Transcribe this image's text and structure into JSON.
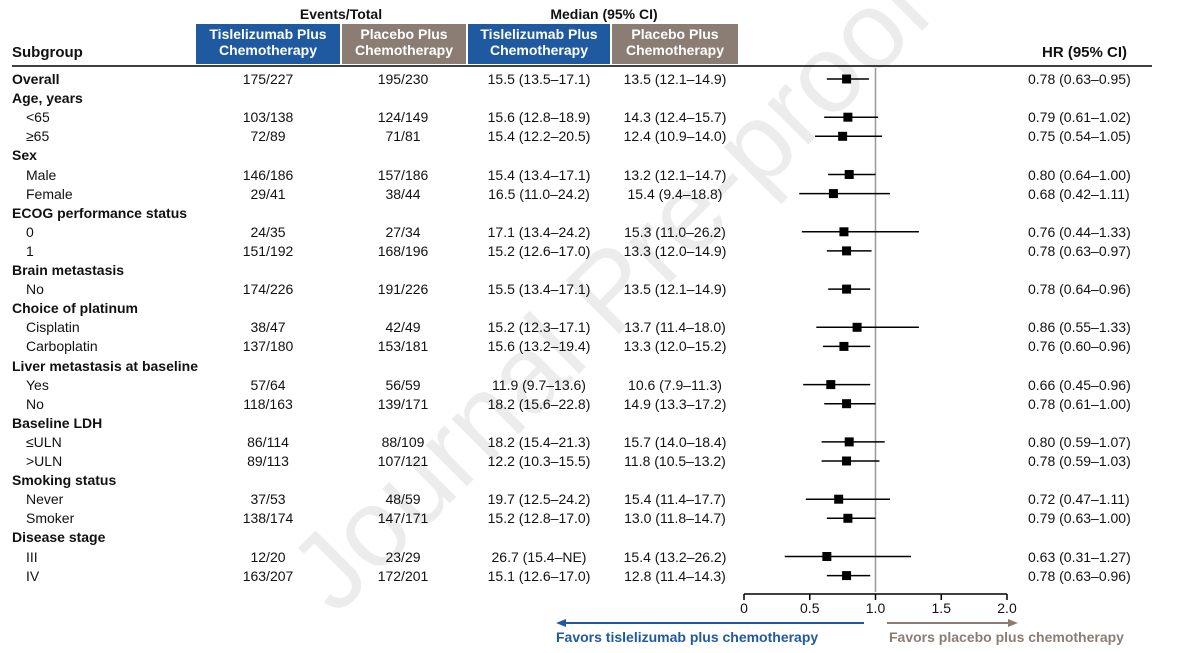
{
  "header": {
    "events_title": "Events/Total",
    "median_title": "Median (95% CI)",
    "subgroup_label": "Subgroup",
    "hr_label": "HR (95% CI)",
    "col_tisle_line1": "Tislelizumab Plus",
    "col_tisle_line2": "Chemotherapy",
    "col_placebo_line1": "Placebo Plus",
    "col_placebo_line2": "Chemotherapy"
  },
  "watermark": "Journal Pre-proof",
  "footer": {
    "favors_tisle": "Favors tislelizumab plus chemotherapy",
    "favors_placebo": "Favors placebo plus chemotherapy"
  },
  "colors": {
    "tisle": "#1f5aa0",
    "placebo": "#8c7d74",
    "reference_line": "#999999"
  },
  "chart_data": {
    "type": "forest",
    "xlim": [
      0,
      2.0
    ],
    "reference": 1.0,
    "xticks": [
      "0",
      "0.5",
      "1.0",
      "1.5",
      "2.0"
    ],
    "rows": [
      {
        "label": "Overall",
        "bold": true,
        "ev_t": "175/227",
        "ev_p": "195/230",
        "med_t": "15.5 (13.5–17.1)",
        "med_p": "13.5 (12.1–14.9)",
        "hr_text": "0.78 (0.63–0.95)",
        "hr": 0.78,
        "lo": 0.63,
        "hi": 0.95
      },
      {
        "label": "Age, years",
        "header": true
      },
      {
        "label": "<65",
        "ev_t": "103/138",
        "ev_p": "124/149",
        "med_t": "15.6 (12.8–18.9)",
        "med_p": "14.3 (12.4–15.7)",
        "hr_text": "0.79 (0.61–1.02)",
        "hr": 0.79,
        "lo": 0.61,
        "hi": 1.02
      },
      {
        "label": "≥65",
        "ev_t": "72/89",
        "ev_p": "71/81",
        "med_t": "15.4 (12.2–20.5)",
        "med_p": "12.4 (10.9–14.0)",
        "hr_text": "0.75 (0.54–1.05)",
        "hr": 0.75,
        "lo": 0.54,
        "hi": 1.05
      },
      {
        "label": "Sex",
        "header": true
      },
      {
        "label": "Male",
        "ev_t": "146/186",
        "ev_p": "157/186",
        "med_t": "15.4 (13.4–17.1)",
        "med_p": "13.2 (12.1–14.7)",
        "hr_text": "0.80 (0.64–1.00)",
        "hr": 0.8,
        "lo": 0.64,
        "hi": 1.0
      },
      {
        "label": "Female",
        "ev_t": "29/41",
        "ev_p": "38/44",
        "med_t": "16.5 (11.0–24.2)",
        "med_p": "15.4 (9.4–18.8)",
        "hr_text": "0.68 (0.42–1.11)",
        "hr": 0.68,
        "lo": 0.42,
        "hi": 1.11
      },
      {
        "label": "ECOG performance status",
        "header": true
      },
      {
        "label": "0",
        "ev_t": "24/35",
        "ev_p": "27/34",
        "med_t": "17.1 (13.4–24.2)",
        "med_p": "15.3 (11.0–26.2)",
        "hr_text": "0.76 (0.44–1.33)",
        "hr": 0.76,
        "lo": 0.44,
        "hi": 1.33
      },
      {
        "label": "1",
        "ev_t": "151/192",
        "ev_p": "168/196",
        "med_t": "15.2 (12.6–17.0)",
        "med_p": "13.3 (12.0–14.9)",
        "hr_text": "0.78 (0.63–0.97)",
        "hr": 0.78,
        "lo": 0.63,
        "hi": 0.97
      },
      {
        "label": "Brain metastasis",
        "header": true
      },
      {
        "label": "No",
        "ev_t": "174/226",
        "ev_p": "191/226",
        "med_t": "15.5 (13.4–17.1)",
        "med_p": "13.5 (12.1–14.9)",
        "hr_text": "0.78 (0.64–0.96)",
        "hr": 0.78,
        "lo": 0.64,
        "hi": 0.96
      },
      {
        "label": "Choice of platinum",
        "header": true
      },
      {
        "label": "Cisplatin",
        "ev_t": "38/47",
        "ev_p": "42/49",
        "med_t": "15.2 (12.3–17.1)",
        "med_p": "13.7 (11.4–18.0)",
        "hr_text": "0.86 (0.55–1.33)",
        "hr": 0.86,
        "lo": 0.55,
        "hi": 1.33
      },
      {
        "label": "Carboplatin",
        "ev_t": "137/180",
        "ev_p": "153/181",
        "med_t": "15.6 (13.2–19.4)",
        "med_p": "13.3 (12.0–15.2)",
        "hr_text": "0.76 (0.60–0.96)",
        "hr": 0.76,
        "lo": 0.6,
        "hi": 0.96
      },
      {
        "label": "Liver metastasis at baseline",
        "header": true
      },
      {
        "label": "Yes",
        "ev_t": "57/64",
        "ev_p": "56/59",
        "med_t": "11.9 (9.7–13.6)",
        "med_p": "10.6 (7.9–11.3)",
        "hr_text": "0.66 (0.45–0.96)",
        "hr": 0.66,
        "lo": 0.45,
        "hi": 0.96
      },
      {
        "label": "No",
        "ev_t": "118/163",
        "ev_p": "139/171",
        "med_t": "18.2 (15.6–22.8)",
        "med_p": "14.9 (13.3–17.2)",
        "hr_text": "0.78 (0.61–1.00)",
        "hr": 0.78,
        "lo": 0.61,
        "hi": 1.0
      },
      {
        "label": "Baseline LDH",
        "header": true
      },
      {
        "label": "≤ULN",
        "ev_t": "86/114",
        "ev_p": "88/109",
        "med_t": "18.2 (15.4–21.3)",
        "med_p": "15.7 (14.0–18.4)",
        "hr_text": "0.80 (0.59–1.07)",
        "hr": 0.8,
        "lo": 0.59,
        "hi": 1.07
      },
      {
        "label": ">ULN",
        "ev_t": "89/113",
        "ev_p": "107/121",
        "med_t": "12.2 (10.3–15.5)",
        "med_p": "11.8 (10.5–13.2)",
        "hr_text": "0.78 (0.59–1.03)",
        "hr": 0.78,
        "lo": 0.59,
        "hi": 1.03
      },
      {
        "label": "Smoking status",
        "header": true
      },
      {
        "label": "Never",
        "ev_t": "37/53",
        "ev_p": "48/59",
        "med_t": "19.7 (12.5–24.2)",
        "med_p": "15.4 (11.4–17.7)",
        "hr_text": "0.72 (0.47–1.11)",
        "hr": 0.72,
        "lo": 0.47,
        "hi": 1.11
      },
      {
        "label": "Smoker",
        "ev_t": "138/174",
        "ev_p": "147/171",
        "med_t": "15.2 (12.8–17.0)",
        "med_p": "13.0 (11.8–14.7)",
        "hr_text": "0.79 (0.63–1.00)",
        "hr": 0.79,
        "lo": 0.63,
        "hi": 1.0
      },
      {
        "label": "Disease stage",
        "header": true
      },
      {
        "label": "III",
        "ev_t": "12/20",
        "ev_p": "23/29",
        "med_t": "26.7 (15.4–NE)",
        "med_p": "15.4 (13.2–26.2)",
        "hr_text": "0.63 (0.31–1.27)",
        "hr": 0.63,
        "lo": 0.31,
        "hi": 1.27
      },
      {
        "label": "IV",
        "ev_t": "163/207",
        "ev_p": "172/201",
        "med_t": "15.1 (12.6–17.0)",
        "med_p": "12.8 (11.4–14.3)",
        "hr_text": "0.78 (0.63–0.96)",
        "hr": 0.78,
        "lo": 0.63,
        "hi": 0.96
      }
    ]
  }
}
